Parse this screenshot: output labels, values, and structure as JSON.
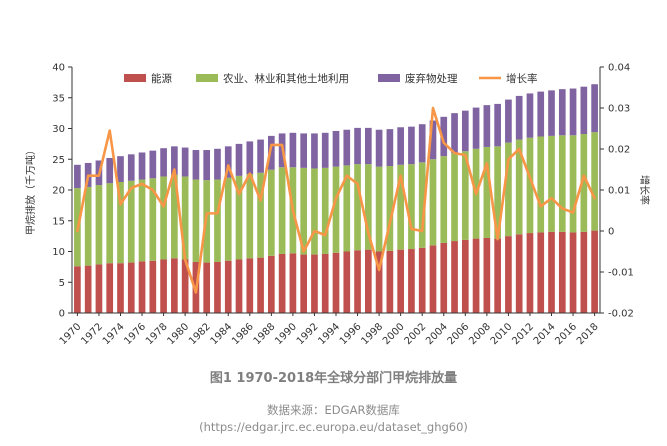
{
  "figure": {
    "title": "图1 1970-2018年全球分部门甲烷排放量",
    "source_line1": "数据来源：EDGAR数据库",
    "source_line2": "(https://edgar.jrc.ec.europa.eu/dataset_ghg60)"
  },
  "colors": {
    "energy": "#c0504d",
    "agriculture": "#9bbb59",
    "waste": "#8064a2",
    "growth": "#f79646",
    "axis": "#333333"
  },
  "chart_data": {
    "type": "bar",
    "stacked": true,
    "grid": false,
    "legend_position": "top",
    "xlabel": "",
    "ylabel": "甲烷排放（千万吨）",
    "y2label": "增长率",
    "ylim": [
      0,
      40
    ],
    "y2lim": [
      -0.02,
      0.04
    ],
    "yticks": [
      0,
      5,
      10,
      15,
      20,
      25,
      30,
      35,
      40
    ],
    "y2ticks": [
      -0.02,
      -0.01,
      0,
      0.01,
      0.02,
      0.03,
      0.04
    ],
    "y2ticklabels": [
      "-0.02",
      "-0.01",
      "0",
      "0.01",
      "0.02",
      "0.03",
      "0.04"
    ],
    "categories": [
      "1970",
      "1971",
      "1972",
      "1973",
      "1974",
      "1975",
      "1976",
      "1977",
      "1978",
      "1979",
      "1980",
      "1981",
      "1982",
      "1983",
      "1984",
      "1985",
      "1986",
      "1987",
      "1988",
      "1989",
      "1990",
      "1991",
      "1992",
      "1993",
      "1994",
      "1995",
      "1996",
      "1997",
      "1998",
      "1999",
      "2000",
      "2001",
      "2002",
      "2003",
      "2004",
      "2005",
      "2006",
      "2007",
      "2008",
      "2009",
      "2010",
      "2011",
      "2012",
      "2013",
      "2014",
      "2015",
      "2016",
      "2017",
      "2018"
    ],
    "xticklabels": [
      "1970",
      "1972",
      "1974",
      "1976",
      "1978",
      "1980",
      "1982",
      "1984",
      "1986",
      "1988",
      "1990",
      "1992",
      "1994",
      "1996",
      "1998",
      "2000",
      "2002",
      "2004",
      "2006",
      "2008",
      "2010",
      "2012",
      "2014",
      "2016",
      "2018"
    ],
    "series": [
      {
        "name": "能源",
        "axis": "left",
        "values": [
          7.6,
          7.7,
          7.9,
          8.1,
          8.1,
          8.2,
          8.4,
          8.5,
          8.7,
          8.9,
          8.7,
          8.3,
          8.2,
          8.3,
          8.5,
          8.7,
          8.9,
          9.0,
          9.3,
          9.6,
          9.7,
          9.5,
          9.5,
          9.6,
          9.8,
          10.0,
          10.2,
          10.3,
          10.0,
          10.1,
          10.3,
          10.4,
          10.6,
          11.0,
          11.4,
          11.7,
          11.9,
          12.1,
          12.2,
          12.1,
          12.5,
          12.8,
          13.0,
          13.1,
          13.2,
          13.2,
          13.1,
          13.2,
          13.4
        ]
      },
      {
        "name": "农业、林业和其他土地利用",
        "axis": "left",
        "values": [
          12.7,
          12.8,
          12.9,
          13.0,
          13.2,
          13.3,
          13.3,
          13.4,
          13.5,
          13.6,
          13.5,
          13.4,
          13.4,
          13.4,
          13.5,
          13.6,
          13.7,
          13.8,
          14.0,
          14.1,
          14.0,
          14.1,
          14.0,
          14.0,
          14.0,
          14.0,
          14.0,
          13.9,
          13.8,
          13.8,
          13.8,
          13.8,
          13.9,
          14.0,
          14.1,
          14.3,
          14.4,
          14.6,
          14.8,
          15.0,
          15.2,
          15.4,
          15.5,
          15.6,
          15.6,
          15.7,
          15.8,
          15.9,
          16.0
        ]
      },
      {
        "name": "废弃物处理",
        "axis": "left",
        "values": [
          3.8,
          3.9,
          4.0,
          4.1,
          4.2,
          4.3,
          4.4,
          4.5,
          4.6,
          4.6,
          4.7,
          4.8,
          4.9,
          5.0,
          5.1,
          5.2,
          5.3,
          5.4,
          5.5,
          5.5,
          5.6,
          5.6,
          5.7,
          5.7,
          5.8,
          5.8,
          5.9,
          5.9,
          6.0,
          6.0,
          6.1,
          6.1,
          6.2,
          6.3,
          6.4,
          6.5,
          6.6,
          6.7,
          6.8,
          6.9,
          7.0,
          7.1,
          7.2,
          7.3,
          7.4,
          7.5,
          7.6,
          7.7,
          7.8
        ]
      },
      {
        "name": "增长率",
        "axis": "right",
        "type": "line",
        "values": [
          0.0,
          0.0135,
          0.0135,
          0.0245,
          0.0065,
          0.0105,
          0.0115,
          0.01,
          0.006,
          0.015,
          -0.007,
          -0.015,
          0.0043,
          0.0043,
          0.016,
          0.009,
          0.014,
          0.0075,
          0.021,
          0.021,
          0.005,
          -0.005,
          0.0,
          -0.001,
          0.008,
          0.0135,
          0.0115,
          -0.0005,
          -0.0095,
          0.002,
          0.0135,
          0.0005,
          0.0,
          0.03,
          0.0215,
          0.019,
          0.0185,
          0.009,
          0.0165,
          -0.002,
          0.0175,
          0.02,
          0.013,
          0.006,
          0.008,
          0.0055,
          0.0045,
          0.0135,
          0.008
        ]
      }
    ]
  }
}
